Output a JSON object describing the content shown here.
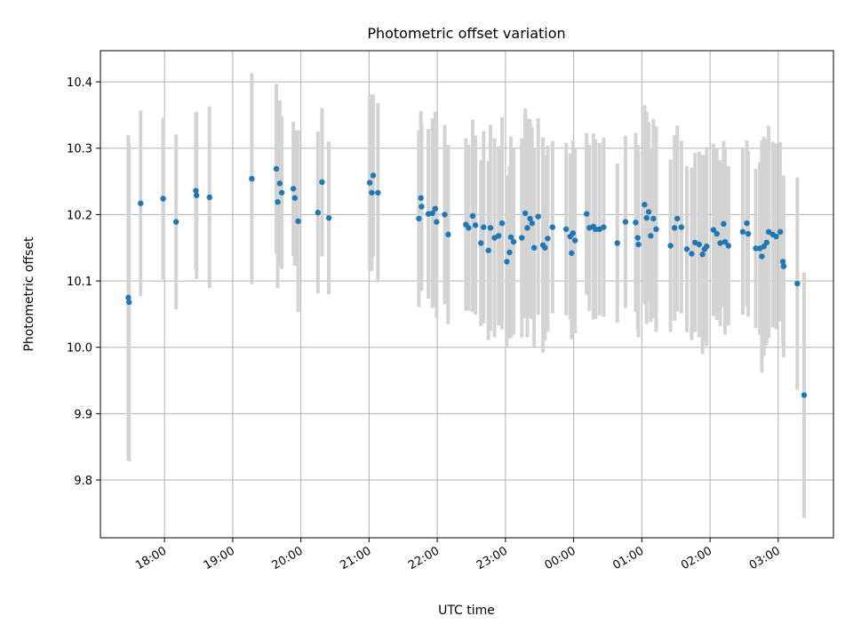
{
  "chart_data": {
    "type": "scatter",
    "title": "Photometric offset variation",
    "xlabel": "UTC time",
    "ylabel": "Photometric offset",
    "grid": true,
    "legend": "none",
    "colors": {
      "point": "#1f77b4",
      "errorbar": "#d3d3d3",
      "grid": "#b0b0b0"
    },
    "xlim_hours": [
      17.06,
      27.81
    ],
    "ylim": [
      9.713,
      10.447
    ],
    "xtick_hours": [
      18,
      19,
      20,
      21,
      22,
      23,
      24,
      25,
      26,
      27
    ],
    "xtick_labels": [
      "18:00",
      "19:00",
      "20:00",
      "21:00",
      "22:00",
      "23:00",
      "00:00",
      "01:00",
      "02:00",
      "03:00"
    ],
    "yticks": [
      9.8,
      9.9,
      10.0,
      10.1,
      10.2,
      10.3,
      10.4
    ],
    "ytick_labels": [
      "9.8",
      "9.9",
      "10.0",
      "10.1",
      "10.2",
      "10.3",
      "10.4"
    ],
    "points": [
      {
        "t": 17.47,
        "y": 10.075,
        "err": 0.245
      },
      {
        "t": 17.48,
        "y": 10.068,
        "err": 0.24
      },
      {
        "t": 17.65,
        "y": 10.217,
        "err": 0.14
      },
      {
        "t": 17.98,
        "y": 10.224,
        "err": 0.122
      },
      {
        "t": 18.17,
        "y": 10.189,
        "err": 0.132
      },
      {
        "t": 18.46,
        "y": 10.236,
        "err": 0.118
      },
      {
        "t": 18.47,
        "y": 10.229,
        "err": 0.126
      },
      {
        "t": 18.66,
        "y": 10.226,
        "err": 0.137
      },
      {
        "t": 19.28,
        "y": 10.254,
        "err": 0.159
      },
      {
        "t": 19.64,
        "y": 10.269,
        "err": 0.128
      },
      {
        "t": 19.66,
        "y": 10.219,
        "err": 0.13
      },
      {
        "t": 19.69,
        "y": 10.247,
        "err": 0.125
      },
      {
        "t": 19.72,
        "y": 10.233,
        "err": 0.115
      },
      {
        "t": 19.89,
        "y": 10.239,
        "err": 0.101
      },
      {
        "t": 19.91,
        "y": 10.225,
        "err": 0.102
      },
      {
        "t": 19.96,
        "y": 10.19,
        "err": 0.137
      },
      {
        "t": 20.25,
        "y": 10.203,
        "err": 0.122
      },
      {
        "t": 20.31,
        "y": 10.249,
        "err": 0.112
      },
      {
        "t": 20.41,
        "y": 10.195,
        "err": 0.115
      },
      {
        "t": 21.01,
        "y": 10.248,
        "err": 0.133
      },
      {
        "t": 21.04,
        "y": 10.233,
        "err": 0.118
      },
      {
        "t": 21.06,
        "y": 10.259,
        "err": 0.122
      },
      {
        "t": 21.13,
        "y": 10.233,
        "err": 0.135
      },
      {
        "t": 21.73,
        "y": 10.194,
        "err": 0.133
      },
      {
        "t": 21.76,
        "y": 10.225,
        "err": 0.131
      },
      {
        "t": 21.77,
        "y": 10.212,
        "err": 0.127
      },
      {
        "t": 21.87,
        "y": 10.201,
        "err": 0.128
      },
      {
        "t": 21.93,
        "y": 10.202,
        "err": 0.143
      },
      {
        "t": 21.97,
        "y": 10.209,
        "err": 0.146
      },
      {
        "t": 21.99,
        "y": 10.189,
        "err": 0.145
      },
      {
        "t": 22.11,
        "y": 10.2,
        "err": 0.135
      },
      {
        "t": 22.16,
        "y": 10.17,
        "err": 0.135
      },
      {
        "t": 22.42,
        "y": 10.185,
        "err": 0.13
      },
      {
        "t": 22.46,
        "y": 10.18,
        "err": 0.125
      },
      {
        "t": 22.52,
        "y": 10.198,
        "err": 0.145
      },
      {
        "t": 22.56,
        "y": 10.184,
        "err": 0.135
      },
      {
        "t": 22.64,
        "y": 10.157,
        "err": 0.125
      },
      {
        "t": 22.68,
        "y": 10.181,
        "err": 0.145
      },
      {
        "t": 22.75,
        "y": 10.146,
        "err": 0.135
      },
      {
        "t": 22.78,
        "y": 10.18,
        "err": 0.155
      },
      {
        "t": 22.84,
        "y": 10.165,
        "err": 0.15
      },
      {
        "t": 22.9,
        "y": 10.168,
        "err": 0.135
      },
      {
        "t": 22.95,
        "y": 10.187,
        "err": 0.16
      },
      {
        "t": 23.02,
        "y": 10.129,
        "err": 0.13
      },
      {
        "t": 23.06,
        "y": 10.143,
        "err": 0.13
      },
      {
        "t": 23.08,
        "y": 10.166,
        "err": 0.152
      },
      {
        "t": 23.12,
        "y": 10.159,
        "err": 0.14
      },
      {
        "t": 23.24,
        "y": 10.165,
        "err": 0.15
      },
      {
        "t": 23.29,
        "y": 10.202,
        "err": 0.158
      },
      {
        "t": 23.32,
        "y": 10.18,
        "err": 0.165
      },
      {
        "t": 23.36,
        "y": 10.194,
        "err": 0.15
      },
      {
        "t": 23.39,
        "y": 10.187,
        "err": 0.145
      },
      {
        "t": 23.42,
        "y": 10.15,
        "err": 0.15
      },
      {
        "t": 23.48,
        "y": 10.197,
        "err": 0.148
      },
      {
        "t": 23.55,
        "y": 10.154,
        "err": 0.162
      },
      {
        "t": 23.58,
        "y": 10.15,
        "err": 0.14
      },
      {
        "t": 23.62,
        "y": 10.164,
        "err": 0.14
      },
      {
        "t": 23.69,
        "y": 10.181,
        "err": 0.13
      },
      {
        "t": 23.89,
        "y": 10.178,
        "err": 0.13
      },
      {
        "t": 23.95,
        "y": 10.167,
        "err": 0.125
      },
      {
        "t": 23.97,
        "y": 10.142,
        "err": 0.13
      },
      {
        "t": 23.99,
        "y": 10.172,
        "err": 0.14
      },
      {
        "t": 24.02,
        "y": 10.161,
        "err": 0.14
      },
      {
        "t": 24.19,
        "y": 10.201,
        "err": 0.122
      },
      {
        "t": 24.23,
        "y": 10.18,
        "err": 0.125
      },
      {
        "t": 24.29,
        "y": 10.182,
        "err": 0.14
      },
      {
        "t": 24.32,
        "y": 10.178,
        "err": 0.135
      },
      {
        "t": 24.38,
        "y": 10.178,
        "err": 0.13
      },
      {
        "t": 24.44,
        "y": 10.181,
        "err": 0.135
      },
      {
        "t": 24.64,
        "y": 10.157,
        "err": 0.12
      },
      {
        "t": 24.76,
        "y": 10.189,
        "err": 0.13
      },
      {
        "t": 24.91,
        "y": 10.188,
        "err": 0.135
      },
      {
        "t": 24.94,
        "y": 10.165,
        "err": 0.14
      },
      {
        "t": 24.95,
        "y": 10.155,
        "err": 0.14
      },
      {
        "t": 25.04,
        "y": 10.215,
        "err": 0.15
      },
      {
        "t": 25.07,
        "y": 10.195,
        "err": 0.16
      },
      {
        "t": 25.1,
        "y": 10.204,
        "err": 0.135
      },
      {
        "t": 25.13,
        "y": 10.168,
        "err": 0.13
      },
      {
        "t": 25.17,
        "y": 10.194,
        "err": 0.15
      },
      {
        "t": 25.21,
        "y": 10.178,
        "err": 0.155
      },
      {
        "t": 25.42,
        "y": 10.153,
        "err": 0.13
      },
      {
        "t": 25.48,
        "y": 10.18,
        "err": 0.14
      },
      {
        "t": 25.52,
        "y": 10.194,
        "err": 0.14
      },
      {
        "t": 25.58,
        "y": 10.181,
        "err": 0.13
      },
      {
        "t": 25.66,
        "y": 10.148,
        "err": 0.125
      },
      {
        "t": 25.73,
        "y": 10.141,
        "err": 0.13
      },
      {
        "t": 25.78,
        "y": 10.158,
        "err": 0.135
      },
      {
        "t": 25.84,
        "y": 10.155,
        "err": 0.14
      },
      {
        "t": 25.89,
        "y": 10.14,
        "err": 0.15
      },
      {
        "t": 25.92,
        "y": 10.148,
        "err": 0.14
      },
      {
        "t": 25.95,
        "y": 10.152,
        "err": 0.15
      },
      {
        "t": 26.05,
        "y": 10.177,
        "err": 0.13
      },
      {
        "t": 26.1,
        "y": 10.171,
        "err": 0.13
      },
      {
        "t": 26.15,
        "y": 10.157,
        "err": 0.125
      },
      {
        "t": 26.2,
        "y": 10.186,
        "err": 0.125
      },
      {
        "t": 26.22,
        "y": 10.159,
        "err": 0.14
      },
      {
        "t": 26.27,
        "y": 10.153,
        "err": 0.12
      },
      {
        "t": 26.48,
        "y": 10.174,
        "err": 0.125
      },
      {
        "t": 26.54,
        "y": 10.187,
        "err": 0.125
      },
      {
        "t": 26.56,
        "y": 10.171,
        "err": 0.125
      },
      {
        "t": 26.67,
        "y": 10.149,
        "err": 0.12
      },
      {
        "t": 26.73,
        "y": 10.149,
        "err": 0.13
      },
      {
        "t": 26.76,
        "y": 10.137,
        "err": 0.175
      },
      {
        "t": 26.79,
        "y": 10.152,
        "err": 0.165
      },
      {
        "t": 26.83,
        "y": 10.158,
        "err": 0.155
      },
      {
        "t": 26.86,
        "y": 10.174,
        "err": 0.16
      },
      {
        "t": 26.92,
        "y": 10.17,
        "err": 0.14
      },
      {
        "t": 26.97,
        "y": 10.167,
        "err": 0.14
      },
      {
        "t": 27.03,
        "y": 10.174,
        "err": 0.135
      },
      {
        "t": 27.07,
        "y": 10.129,
        "err": 0.125
      },
      {
        "t": 27.08,
        "y": 10.122,
        "err": 0.137
      },
      {
        "t": 27.28,
        "y": 10.096,
        "err": 0.16
      },
      {
        "t": 27.38,
        "y": 9.928,
        "err": 0.185
      }
    ]
  }
}
